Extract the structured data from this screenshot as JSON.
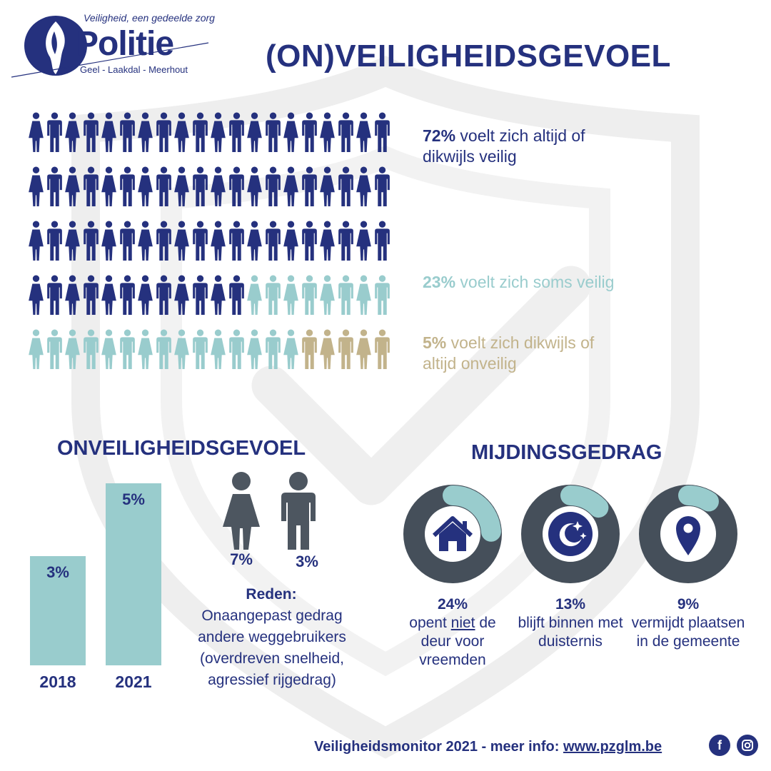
{
  "logo": {
    "tagline": "Veiligheid, een gedeelde zorg",
    "word": "Politie",
    "zone": "Geel - Laakdal - Meerhout"
  },
  "title": "(ON)VEILIGHEIDSGEVOEL",
  "pictogram": {
    "rows": 5,
    "per_row": 20,
    "counts": {
      "safe": 72,
      "sometimes": 23,
      "unsafe": 5
    },
    "colors": {
      "safe": "#25317e",
      "sometimes": "#99cccd",
      "unsafe": "#c2b38b"
    }
  },
  "stats": {
    "safe": {
      "pct": "72%",
      "text": " voelt zich altijd of dikwijls veilig"
    },
    "sometimes": {
      "pct": "23%",
      "text": " voelt zich soms veilig"
    },
    "unsafe": {
      "pct": "5%",
      "text": " voelt zich dikwijls of altijd onveilig"
    }
  },
  "onveilig": {
    "title": "ONVEILIGHEIDSGEVOEL",
    "chart_data": {
      "type": "bar",
      "categories": [
        "2018",
        "2021"
      ],
      "values": [
        3,
        5
      ],
      "value_labels": [
        "3%",
        "5%"
      ]
    },
    "gender": {
      "female": "7%",
      "male": "3%"
    },
    "reason_title": "Reden:",
    "reason_text": "Onaangepast gedrag andere weggebruikers (overdreven snelheid, agressief rijgedrag)"
  },
  "mijding": {
    "title": "MIJDINGSGEDRAG",
    "items": [
      {
        "pct": "24%",
        "text_a": "opent ",
        "text_u": "niet",
        "text_b": " de deur voor vreemden",
        "icon": "house-icon",
        "fraction": 0.24
      },
      {
        "pct": "13%",
        "text_a": "blijft binnen met duisternis",
        "text_u": "",
        "text_b": "",
        "icon": "moon-stars-icon",
        "fraction": 0.13
      },
      {
        "pct": "9%",
        "text_a": "vermijdt plaatsen in de gemeente",
        "text_u": "",
        "text_b": "",
        "icon": "location-pin-icon",
        "fraction": 0.09
      }
    ]
  },
  "footer": {
    "text": "Veiligheidsmonitor 2021 - meer info: ",
    "link": "www.pzglm.be",
    "facebook": "f"
  },
  "colors": {
    "navy": "#25317e",
    "teal": "#99cccd",
    "gold": "#c2b38b",
    "ring": "#454f5a",
    "grey": "#4d5660"
  }
}
